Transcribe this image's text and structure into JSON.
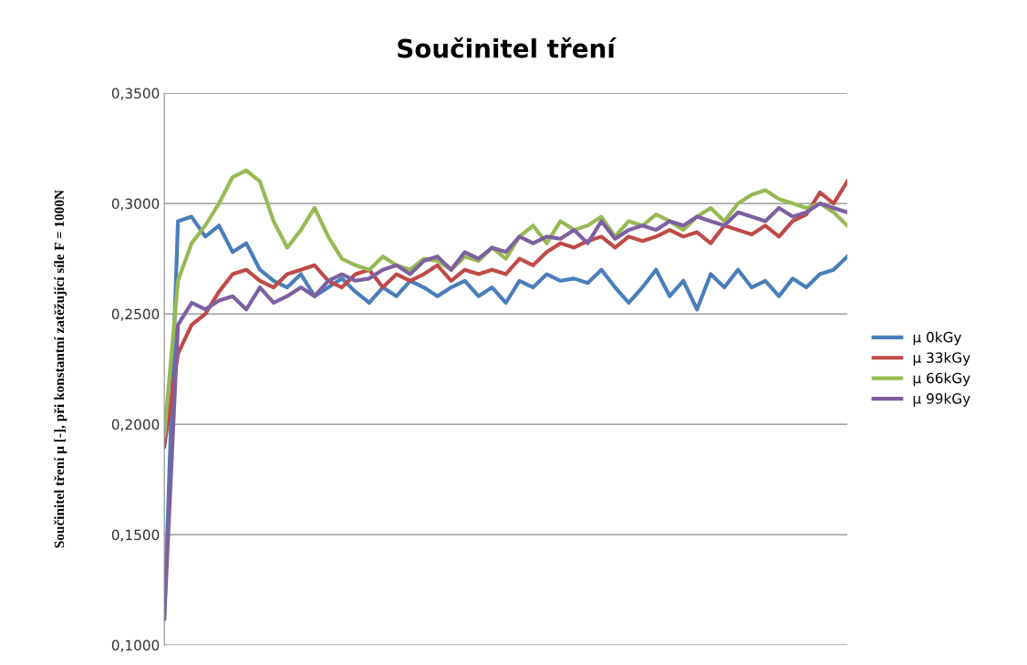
{
  "chart_data": {
    "type": "line",
    "title": "Součinitel tření",
    "ylabel": "Součinitel tření μ [-], při konstantní zatěžující síle F = 1000N",
    "categories": [
      null,
      null,
      null,
      null,
      null,
      null,
      null,
      null,
      null,
      null,
      null,
      null,
      null,
      null,
      null,
      null,
      null,
      null,
      null,
      null,
      null,
      null,
      null,
      null,
      null,
      null,
      null,
      null,
      null,
      null,
      null,
      null,
      null,
      null,
      null,
      null,
      null,
      null,
      null,
      null,
      null,
      null,
      null,
      null,
      null,
      null,
      null,
      null,
      null,
      null,
      null
    ],
    "series": [
      {
        "name": "μ 0kGy",
        "color": "#4a7ebb",
        "values": [
          0.112,
          0.292,
          0.294,
          0.285,
          0.29,
          0.278,
          0.282,
          0.27,
          0.265,
          0.262,
          0.268,
          0.258,
          0.262,
          0.266,
          0.26,
          0.255,
          0.262,
          0.258,
          0.265,
          0.262,
          0.258,
          0.262,
          0.265,
          0.258,
          0.262,
          0.255,
          0.265,
          0.262,
          0.268,
          0.265,
          0.266,
          0.264,
          0.27,
          0.262,
          0.255,
          0.262,
          0.27,
          0.258,
          0.265,
          0.252,
          0.268,
          0.262,
          0.27,
          0.262,
          0.265,
          0.258,
          0.266,
          0.262,
          0.268,
          0.27,
          0.276
        ]
      },
      {
        "name": "μ 33kGy",
        "color": "#be4b48",
        "values": [
          0.19,
          0.232,
          0.245,
          0.25,
          0.26,
          0.268,
          0.27,
          0.265,
          0.262,
          0.268,
          0.27,
          0.272,
          0.265,
          0.262,
          0.268,
          0.27,
          0.262,
          0.268,
          0.265,
          0.268,
          0.272,
          0.265,
          0.27,
          0.268,
          0.27,
          0.268,
          0.275,
          0.272,
          0.278,
          0.282,
          0.28,
          0.283,
          0.285,
          0.28,
          0.285,
          0.283,
          0.285,
          0.288,
          0.285,
          0.287,
          0.282,
          0.29,
          0.288,
          0.286,
          0.29,
          0.285,
          0.292,
          0.295,
          0.305,
          0.3,
          0.31
        ]
      },
      {
        "name": "μ 66kGy",
        "color": "#98b954",
        "values": [
          0.195,
          0.265,
          0.282,
          0.29,
          0.3,
          0.312,
          0.315,
          0.31,
          0.292,
          0.28,
          0.288,
          0.298,
          0.285,
          0.275,
          0.272,
          0.27,
          0.276,
          0.272,
          0.27,
          0.275,
          0.274,
          0.27,
          0.276,
          0.274,
          0.28,
          0.275,
          0.285,
          0.29,
          0.282,
          0.292,
          0.288,
          0.29,
          0.294,
          0.285,
          0.292,
          0.29,
          0.295,
          0.292,
          0.288,
          0.294,
          0.298,
          0.292,
          0.3,
          0.304,
          0.306,
          0.302,
          0.3,
          0.298,
          0.3,
          0.296,
          0.29
        ]
      },
      {
        "name": "μ 99kGy",
        "color": "#7d60a0",
        "values": [
          0.112,
          0.245,
          0.255,
          0.252,
          0.256,
          0.258,
          0.252,
          0.262,
          0.255,
          0.258,
          0.262,
          0.258,
          0.265,
          0.268,
          0.265,
          0.266,
          0.27,
          0.272,
          0.268,
          0.274,
          0.276,
          0.27,
          0.278,
          0.275,
          0.28,
          0.278,
          0.285,
          0.282,
          0.285,
          0.284,
          0.288,
          0.282,
          0.292,
          0.284,
          0.288,
          0.29,
          0.288,
          0.292,
          0.29,
          0.294,
          0.292,
          0.29,
          0.296,
          0.294,
          0.292,
          0.298,
          0.294,
          0.296,
          0.3,
          0.298,
          0.296
        ]
      }
    ],
    "ylim": [
      0.1,
      0.35
    ],
    "yticks": [
      {
        "value": 0.1,
        "label": "0,1000"
      },
      {
        "value": 0.15,
        "label": "0,1500"
      },
      {
        "value": 0.2,
        "label": "0,2000"
      },
      {
        "value": 0.25,
        "label": "0,2500"
      },
      {
        "value": 0.3,
        "label": "0,3000"
      },
      {
        "value": 0.35,
        "label": "0,3500"
      }
    ],
    "grid": "y",
    "legend": "right",
    "marker": "none",
    "line_style": "solid"
  }
}
